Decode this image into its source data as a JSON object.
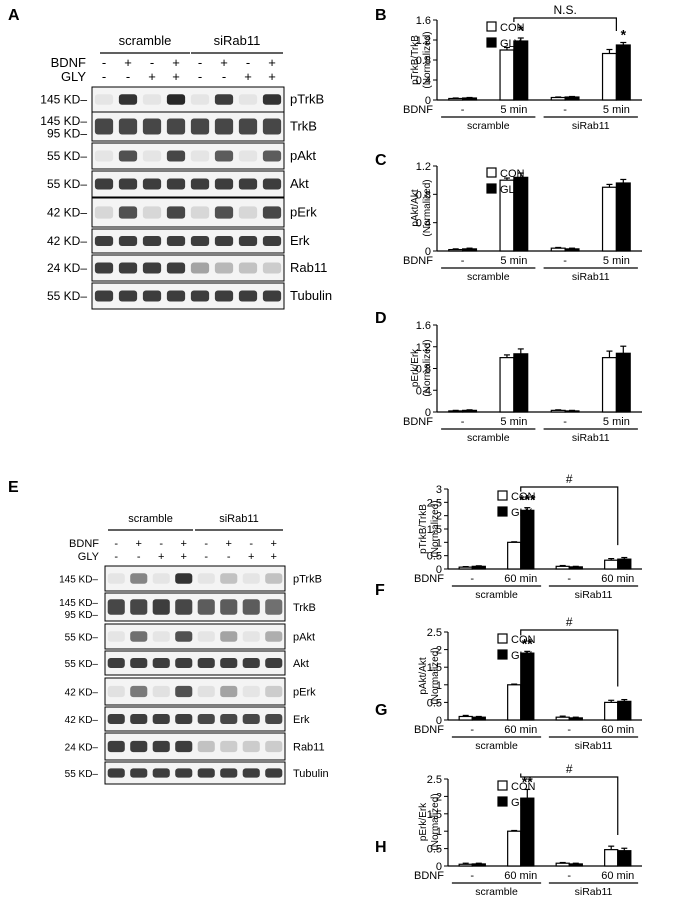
{
  "panels": {
    "a": {
      "letter": "A",
      "group1": "scramble",
      "group2": "siRab11",
      "bdnf_label": "BDNF",
      "gly_label": "GLY",
      "bdnf_signs": [
        "-",
        "+",
        "-",
        "+",
        "-",
        "+",
        "-",
        "+"
      ],
      "gly_signs": [
        "-",
        "-",
        "+",
        "+",
        "-",
        "-",
        "+",
        "+"
      ],
      "blots": [
        {
          "mw": [
            "145 KD"
          ],
          "name": "pTrkB",
          "lanes": [
            0.03,
            0.9,
            0.03,
            0.95,
            0.03,
            0.85,
            0.03,
            0.9
          ]
        },
        {
          "mw": [
            "145 KD",
            "95 KD"
          ],
          "name": "TrkB",
          "lanes": [
            0.8,
            0.8,
            0.8,
            0.8,
            0.8,
            0.8,
            0.8,
            0.8
          ]
        },
        {
          "mw": [
            "55 KD"
          ],
          "name": "pAkt",
          "lanes": [
            0.03,
            0.75,
            0.03,
            0.8,
            0.03,
            0.7,
            0.03,
            0.7
          ]
        },
        {
          "mw": [
            "55 KD"
          ],
          "name": "Akt",
          "lanes": [
            0.85,
            0.85,
            0.85,
            0.85,
            0.85,
            0.85,
            0.85,
            0.85
          ]
        },
        {
          "mw": [
            "42 KD"
          ],
          "name": "pErk",
          "lanes": [
            0.1,
            0.75,
            0.1,
            0.8,
            0.1,
            0.75,
            0.1,
            0.8
          ]
        },
        {
          "mw": [
            "42 KD"
          ],
          "name": "Erk",
          "lanes": [
            0.85,
            0.85,
            0.85,
            0.85,
            0.85,
            0.85,
            0.85,
            0.85
          ]
        },
        {
          "mw": [
            "24 KD"
          ],
          "name": "Rab11",
          "lanes": [
            0.85,
            0.85,
            0.85,
            0.85,
            0.35,
            0.25,
            0.2,
            0.15
          ]
        },
        {
          "mw": [
            "55 KD"
          ],
          "name": "Tubulin",
          "lanes": [
            0.85,
            0.85,
            0.85,
            0.85,
            0.85,
            0.85,
            0.85,
            0.85
          ]
        }
      ]
    },
    "e": {
      "letter": "E",
      "group1": "scramble",
      "group2": "siRab11",
      "bdnf_label": "BDNF",
      "gly_label": "GLY",
      "bdnf_signs": [
        "-",
        "+",
        "-",
        "+",
        "-",
        "+",
        "-",
        "+"
      ],
      "gly_signs": [
        "-",
        "-",
        "+",
        "+",
        "-",
        "-",
        "+",
        "+"
      ],
      "blots": [
        {
          "mw": [
            "145 KD"
          ],
          "name": "pTrkB",
          "lanes": [
            0.03,
            0.5,
            0.03,
            0.9,
            0.03,
            0.2,
            0.03,
            0.2
          ]
        },
        {
          "mw": [
            "145 KD",
            "95 KD"
          ],
          "name": "TrkB",
          "lanes": [
            0.8,
            0.8,
            0.85,
            0.8,
            0.7,
            0.7,
            0.7,
            0.6
          ]
        },
        {
          "mw": [
            "55 KD"
          ],
          "name": "pAkt",
          "lanes": [
            0.03,
            0.6,
            0.03,
            0.75,
            0.03,
            0.35,
            0.03,
            0.3
          ]
        },
        {
          "mw": [
            "55 KD"
          ],
          "name": "Akt",
          "lanes": [
            0.85,
            0.85,
            0.85,
            0.85,
            0.85,
            0.85,
            0.85,
            0.85
          ]
        },
        {
          "mw": [
            "42 KD"
          ],
          "name": "pErk",
          "lanes": [
            0.05,
            0.55,
            0.05,
            0.75,
            0.05,
            0.35,
            0.03,
            0.15
          ]
        },
        {
          "mw": [
            "42 KD"
          ],
          "name": "Erk",
          "lanes": [
            0.85,
            0.85,
            0.85,
            0.85,
            0.8,
            0.8,
            0.8,
            0.8
          ]
        },
        {
          "mw": [
            "24 KD"
          ],
          "name": "Rab11",
          "lanes": [
            0.85,
            0.85,
            0.85,
            0.85,
            0.2,
            0.15,
            0.15,
            0.15
          ]
        },
        {
          "mw": [
            "55 KD"
          ],
          "name": "Tubulin",
          "lanes": [
            0.85,
            0.85,
            0.85,
            0.85,
            0.85,
            0.85,
            0.85,
            0.85
          ]
        }
      ]
    }
  },
  "chart_data": [
    {
      "panel": "B",
      "type": "bar",
      "ylabel": "pTrkB/TrkB\n(Normalized)",
      "ylim": [
        0,
        1.6
      ],
      "yticks": [
        "0",
        "0.4",
        "0.8",
        "1.2",
        "1.6"
      ],
      "legend": [
        "CON",
        "GLY"
      ],
      "xrow_label": "BDNF",
      "categories": [
        "-",
        "5 min",
        "-",
        "5 min"
      ],
      "groups": [
        "scramble",
        "siRab11"
      ],
      "series": [
        {
          "name": "CON",
          "values": [
            0.03,
            1.0,
            0.05,
            0.93
          ],
          "errors": [
            0.01,
            0.05,
            0.01,
            0.08
          ]
        },
        {
          "name": "GLY",
          "values": [
            0.04,
            1.18,
            0.06,
            1.1
          ],
          "errors": [
            0.01,
            0.06,
            0.01,
            0.05
          ]
        }
      ],
      "stars": [
        {
          "cat": 1,
          "series": 1,
          "text": "*"
        },
        {
          "cat": 3,
          "series": 1,
          "text": "*"
        }
      ],
      "bracket": {
        "from": 1,
        "to": 3,
        "text": "N.S."
      }
    },
    {
      "panel": "C",
      "type": "bar",
      "ylabel": "pAkt/Akt\n(Normalized)",
      "ylim": [
        0,
        1.2
      ],
      "yticks": [
        "0",
        "0.4",
        "0.8",
        "1.2"
      ],
      "legend": [
        "CON",
        "GLY"
      ],
      "xrow_label": "BDNF",
      "categories": [
        "-",
        "5 min",
        "-",
        "5 min"
      ],
      "groups": [
        "scramble",
        "siRab11"
      ],
      "series": [
        {
          "name": "CON",
          "values": [
            0.02,
            1.0,
            0.04,
            0.9
          ],
          "errors": [
            0.01,
            0.03,
            0.01,
            0.04
          ]
        },
        {
          "name": "GLY",
          "values": [
            0.03,
            1.04,
            0.03,
            0.96
          ],
          "errors": [
            0.01,
            0.06,
            0.01,
            0.05
          ]
        }
      ],
      "stars": [],
      "bracket": null
    },
    {
      "panel": "D",
      "type": "bar",
      "ylabel": "pErk/Erk\n(Normalized)",
      "ylim": [
        0,
        1.6
      ],
      "yticks": [
        "0",
        "0.4",
        "0.8",
        "1.2",
        "1.6"
      ],
      "legend": [],
      "xrow_label": "BDNF",
      "categories": [
        "-",
        "5 min",
        "-",
        "5 min"
      ],
      "groups": [
        "scramble",
        "siRab11"
      ],
      "series": [
        {
          "name": "CON",
          "values": [
            0.02,
            1.0,
            0.03,
            1.0
          ],
          "errors": [
            0.01,
            0.05,
            0.01,
            0.12
          ]
        },
        {
          "name": "GLY",
          "values": [
            0.03,
            1.07,
            0.02,
            1.08
          ],
          "errors": [
            0.01,
            0.09,
            0.01,
            0.13
          ]
        }
      ],
      "stars": [],
      "bracket": null
    },
    {
      "panel": "F",
      "type": "bar",
      "ylabel": "pTrkB/TrkB\n(Normalized)",
      "ylim": [
        0,
        3
      ],
      "yticks": [
        "0",
        "0.5",
        "1",
        "1.5",
        "2",
        "2.5",
        "3"
      ],
      "legend": [
        "CON",
        "GLY"
      ],
      "xrow_label": "BDNF",
      "categories": [
        "-",
        "60 min",
        "-",
        "60 min"
      ],
      "groups": [
        "scramble",
        "siRab11"
      ],
      "series": [
        {
          "name": "CON",
          "values": [
            0.07,
            1.0,
            0.1,
            0.33
          ],
          "errors": [
            0.02,
            0.02,
            0.03,
            0.06
          ]
        },
        {
          "name": "GLY",
          "values": [
            0.1,
            2.2,
            0.08,
            0.37
          ],
          "errors": [
            0.02,
            0.1,
            0.02,
            0.06
          ]
        }
      ],
      "stars": [
        {
          "cat": 1,
          "series": 1,
          "text": "***"
        }
      ],
      "bracket": {
        "from": 1,
        "to": 3,
        "text": "#"
      }
    },
    {
      "panel": "G",
      "type": "bar",
      "ylabel": "pAkt/Akt\n(Normalized)",
      "ylim": [
        0,
        2.5
      ],
      "yticks": [
        "0",
        "0.5",
        "1",
        "1.5",
        "2",
        "2.5"
      ],
      "legend": [
        "CON",
        "GLY"
      ],
      "xrow_label": "BDNF",
      "categories": [
        "-",
        "60 min",
        "-",
        "60 min"
      ],
      "groups": [
        "scramble",
        "siRab11"
      ],
      "series": [
        {
          "name": "CON",
          "values": [
            0.1,
            1.0,
            0.08,
            0.5
          ],
          "errors": [
            0.03,
            0.02,
            0.03,
            0.06
          ]
        },
        {
          "name": "GLY",
          "values": [
            0.08,
            1.9,
            0.06,
            0.53
          ],
          "errors": [
            0.02,
            0.05,
            0.02,
            0.05
          ]
        }
      ],
      "stars": [
        {
          "cat": 1,
          "series": 1,
          "text": "**"
        }
      ],
      "bracket": {
        "from": 1,
        "to": 3,
        "text": "#"
      }
    },
    {
      "panel": "H",
      "type": "bar",
      "ylabel": "pErk/Erk\n(Normalized)",
      "ylim": [
        0,
        2.5
      ],
      "yticks": [
        "0",
        "0.5",
        "1",
        "1.5",
        "2",
        "2.5"
      ],
      "legend": [
        "CON",
        "GLY"
      ],
      "xrow_label": "BDNF",
      "categories": [
        "-",
        "60 min",
        "-",
        "60 min"
      ],
      "groups": [
        "scramble",
        "siRab11"
      ],
      "series": [
        {
          "name": "CON",
          "values": [
            0.05,
            1.0,
            0.08,
            0.47
          ],
          "errors": [
            0.03,
            0.02,
            0.02,
            0.1
          ]
        },
        {
          "name": "GLY",
          "values": [
            0.06,
            1.95,
            0.06,
            0.44
          ],
          "errors": [
            0.02,
            0.25,
            0.02,
            0.07
          ]
        }
      ],
      "stars": [
        {
          "cat": 1,
          "series": 1,
          "text": "**"
        }
      ],
      "bracket": {
        "from": 1,
        "to": 3,
        "text": "#"
      }
    }
  ]
}
